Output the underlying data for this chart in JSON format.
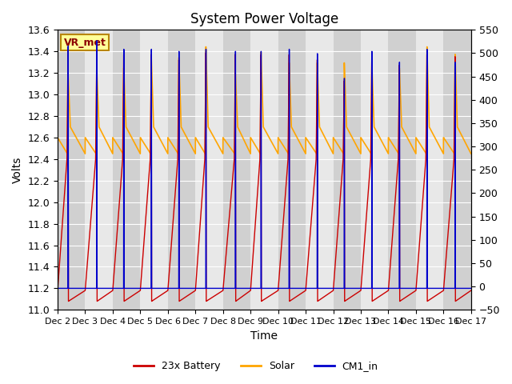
{
  "title": "System Power Voltage",
  "xlabel": "Time",
  "ylabel_left": "Volts",
  "ylim_left": [
    11.0,
    13.6
  ],
  "ylim_right": [
    -50,
    550
  ],
  "yticks_left": [
    11.0,
    11.2,
    11.4,
    11.6,
    11.8,
    12.0,
    12.2,
    12.4,
    12.6,
    12.8,
    13.0,
    13.2,
    13.4,
    13.6
  ],
  "yticks_right": [
    -50,
    0,
    50,
    100,
    150,
    200,
    250,
    300,
    350,
    400,
    450,
    500,
    550
  ],
  "xtick_labels": [
    "Dec 2",
    "Dec 3",
    "Dec 4",
    "Dec 5",
    "Dec 6",
    "Dec 7",
    "Dec 8",
    "Dec 9",
    "Dec 10",
    "Dec 11",
    "Dec 12",
    "Dec 13",
    "Dec 14",
    "Dec 15",
    "Dec 16",
    "Dec 17"
  ],
  "num_days": 15,
  "battery_color": "#CC0000",
  "solar_color": "#FFA500",
  "cm1_color": "#0000CC",
  "plot_bg_color": "#E8E8E8",
  "strip_color": "#D0D0D0",
  "vr_met_label": "VR_met",
  "legend_labels": [
    "23x Battery",
    "Solar",
    "CM1_in"
  ],
  "title_fontsize": 12,
  "axis_fontsize": 10,
  "tick_fontsize": 9,
  "peak_positions": [
    0.38,
    0.42,
    0.4,
    0.4,
    0.4,
    0.38,
    0.45,
    0.38,
    0.4,
    0.42,
    0.4,
    0.4,
    0.4,
    0.4,
    0.42
  ],
  "battery_peaks": [
    13.45,
    13.4,
    13.4,
    13.4,
    13.35,
    13.42,
    13.4,
    13.4,
    13.4,
    13.35,
    13.15,
    13.4,
    13.3,
    13.4,
    13.38
  ],
  "solar_peaks": [
    13.2,
    13.25,
    13.25,
    13.35,
    13.35,
    13.45,
    13.2,
    13.4,
    13.3,
    13.3,
    13.3,
    13.3,
    13.25,
    13.45,
    13.38
  ],
  "cm1_peaks": [
    13.45,
    13.5,
    13.42,
    13.42,
    13.4,
    13.42,
    13.4,
    13.4,
    13.42,
    13.38,
    13.15,
    13.4,
    13.3,
    13.42,
    13.3
  ]
}
